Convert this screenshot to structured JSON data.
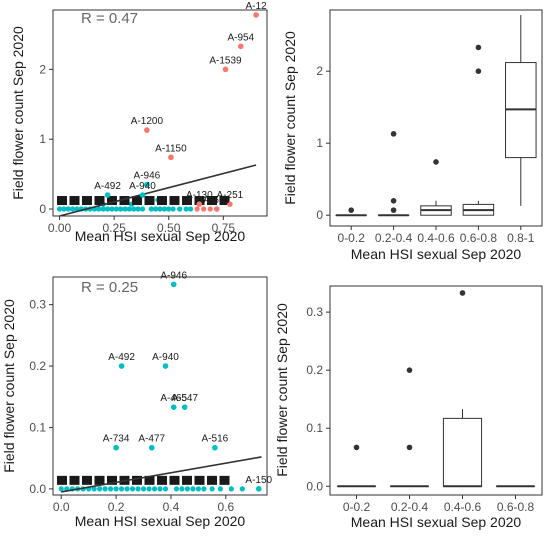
{
  "chart_data": [
    {
      "id": "p1",
      "type": "scatter",
      "xlabel": "Mean HSI sexual Sep 2020",
      "ylabel": "Field flower count Sep 2020",
      "annotation": "R = 0.47",
      "xlim": [
        -0.03,
        0.95
      ],
      "ylim": [
        -0.1,
        2.85
      ],
      "xticks": [
        "0.00",
        "0.25",
        "0.50",
        "0.75"
      ],
      "xtick_values": [
        0,
        0.25,
        0.5,
        0.75
      ],
      "yticks": [
        "0",
        "1",
        "2"
      ],
      "ytick_values": [
        0,
        1,
        2
      ],
      "colors": {
        "high": "#F8766D",
        "low": "#00BFC4"
      },
      "regression": {
        "x": [
          0.0,
          0.9
        ],
        "y": [
          -0.1,
          0.63
        ]
      },
      "labeled_points": [
        {
          "label": "A-12",
          "x": 0.9,
          "y": 2.78,
          "color": "high"
        },
        {
          "label": "A-954",
          "x": 0.83,
          "y": 2.33,
          "color": "high"
        },
        {
          "label": "A-1539",
          "x": 0.76,
          "y": 2.0,
          "color": "high"
        },
        {
          "label": "A-1200",
          "x": 0.4,
          "y": 1.13,
          "color": "high"
        },
        {
          "label": "A-1150",
          "x": 0.51,
          "y": 0.74,
          "color": "high"
        },
        {
          "label": "A-946",
          "x": 0.4,
          "y": 0.35,
          "color": "low"
        },
        {
          "label": "A-492",
          "x": 0.22,
          "y": 0.2,
          "color": "low"
        },
        {
          "label": "A-940",
          "x": 0.38,
          "y": 0.2,
          "color": "low"
        },
        {
          "label": "A-130",
          "x": 0.64,
          "y": 0.07,
          "color": "high"
        },
        {
          "label": "A-251",
          "x": 0.78,
          "y": 0.07,
          "color": "high"
        },
        {
          "label": "A-509",
          "x": 0.72,
          "y": 0.0,
          "color": "high"
        }
      ],
      "points": [
        {
          "x": 0.0,
          "y": 0
        },
        {
          "x": 0.02,
          "y": 0
        },
        {
          "x": 0.04,
          "y": 0
        },
        {
          "x": 0.06,
          "y": 0
        },
        {
          "x": 0.08,
          "y": 0
        },
        {
          "x": 0.1,
          "y": 0
        },
        {
          "x": 0.12,
          "y": 0
        },
        {
          "x": 0.14,
          "y": 0
        },
        {
          "x": 0.16,
          "y": 0
        },
        {
          "x": 0.18,
          "y": 0
        },
        {
          "x": 0.2,
          "y": 0
        },
        {
          "x": 0.22,
          "y": 0
        },
        {
          "x": 0.24,
          "y": 0
        },
        {
          "x": 0.26,
          "y": 0
        },
        {
          "x": 0.28,
          "y": 0
        },
        {
          "x": 0.3,
          "y": 0
        },
        {
          "x": 0.32,
          "y": 0
        },
        {
          "x": 0.34,
          "y": 0
        },
        {
          "x": 0.36,
          "y": 0
        },
        {
          "x": 0.38,
          "y": 0
        },
        {
          "x": 0.42,
          "y": 0
        },
        {
          "x": 0.44,
          "y": 0
        },
        {
          "x": 0.46,
          "y": 0
        },
        {
          "x": 0.48,
          "y": 0
        },
        {
          "x": 0.5,
          "y": 0
        },
        {
          "x": 0.52,
          "y": 0
        },
        {
          "x": 0.55,
          "y": 0
        },
        {
          "x": 0.58,
          "y": 0
        },
        {
          "x": 0.6,
          "y": 0
        },
        {
          "x": 0.2,
          "y": 0.07
        },
        {
          "x": 0.33,
          "y": 0.07
        },
        {
          "x": 0.45,
          "y": 0.13
        },
        {
          "x": 0.41,
          "y": 0.13
        },
        {
          "x": 0.63,
          "y": 0,
          "color": "high"
        },
        {
          "x": 0.66,
          "y": 0,
          "color": "high"
        },
        {
          "x": 0.69,
          "y": 0,
          "color": "high"
        }
      ]
    },
    {
      "id": "p2",
      "type": "box",
      "xlabel": "Mean HSI sexual Sep 2020",
      "ylabel": "Field flower count Sep 2020",
      "ylim": [
        -0.15,
        2.85
      ],
      "yticks": [
        "0",
        "1",
        "2"
      ],
      "ytick_values": [
        0,
        1,
        2
      ],
      "categories": [
        "0-0.2",
        "0.2-0.4",
        "0.4-0.6",
        "0.6-0.8",
        "0.8-1"
      ],
      "boxes": [
        {
          "q1": 0,
          "median": 0,
          "q3": 0,
          "lo": 0,
          "hi": 0,
          "outliers": [
            0.07
          ]
        },
        {
          "q1": 0,
          "median": 0,
          "q3": 0,
          "lo": 0,
          "hi": 0,
          "outliers": [
            1.13,
            0.2,
            0.07
          ]
        },
        {
          "q1": 0.0,
          "median": 0.07,
          "q3": 0.13,
          "lo": 0,
          "hi": 0.2,
          "outliers": [
            0.74
          ]
        },
        {
          "q1": 0.0,
          "median": 0.07,
          "q3": 0.15,
          "lo": 0,
          "hi": 0.2,
          "outliers": [
            2.33,
            2.0
          ]
        },
        {
          "q1": 0.8,
          "median": 1.47,
          "q3": 2.12,
          "lo": 0.13,
          "hi": 2.78,
          "outliers": []
        }
      ]
    },
    {
      "id": "p3",
      "type": "scatter",
      "xlabel": "Mean HSI sexual Sep 2020",
      "ylabel": "Field flower count Sep 2020",
      "annotation": "R = 0.25",
      "xlim": [
        -0.03,
        0.75
      ],
      "ylim": [
        -0.01,
        0.345
      ],
      "xticks": [
        "0.0",
        "0.2",
        "0.4",
        "0.6"
      ],
      "xtick_values": [
        0,
        0.2,
        0.4,
        0.6
      ],
      "yticks": [
        "0.0",
        "0.1",
        "0.2",
        "0.3"
      ],
      "ytick_values": [
        0,
        0.1,
        0.2,
        0.3
      ],
      "colors": {
        "low": "#00BFC4"
      },
      "regression": {
        "x": [
          0.0,
          0.73
        ],
        "y": [
          -0.005,
          0.052
        ]
      },
      "labeled_points": [
        {
          "label": "A-946",
          "x": 0.41,
          "y": 0.333,
          "color": "low"
        },
        {
          "label": "A-492",
          "x": 0.22,
          "y": 0.2,
          "color": "low"
        },
        {
          "label": "A-940",
          "x": 0.38,
          "y": 0.2,
          "color": "low"
        },
        {
          "label": "A-465",
          "x": 0.41,
          "y": 0.133,
          "color": "low"
        },
        {
          "label": "A-547",
          "x": 0.45,
          "y": 0.133,
          "color": "low"
        },
        {
          "label": "A-734",
          "x": 0.2,
          "y": 0.067,
          "color": "low"
        },
        {
          "label": "A-477",
          "x": 0.33,
          "y": 0.067,
          "color": "low"
        },
        {
          "label": "A-516",
          "x": 0.56,
          "y": 0.067,
          "color": "low"
        },
        {
          "label": "A-150",
          "x": 0.72,
          "y": 0.0,
          "color": "low"
        }
      ],
      "points": [
        {
          "x": 0.0,
          "y": 0
        },
        {
          "x": 0.02,
          "y": 0
        },
        {
          "x": 0.04,
          "y": 0
        },
        {
          "x": 0.06,
          "y": 0
        },
        {
          "x": 0.08,
          "y": 0
        },
        {
          "x": 0.1,
          "y": 0
        },
        {
          "x": 0.12,
          "y": 0
        },
        {
          "x": 0.14,
          "y": 0
        },
        {
          "x": 0.16,
          "y": 0
        },
        {
          "x": 0.18,
          "y": 0
        },
        {
          "x": 0.2,
          "y": 0
        },
        {
          "x": 0.22,
          "y": 0
        },
        {
          "x": 0.24,
          "y": 0
        },
        {
          "x": 0.26,
          "y": 0
        },
        {
          "x": 0.28,
          "y": 0
        },
        {
          "x": 0.3,
          "y": 0
        },
        {
          "x": 0.32,
          "y": 0
        },
        {
          "x": 0.34,
          "y": 0
        },
        {
          "x": 0.36,
          "y": 0
        },
        {
          "x": 0.38,
          "y": 0
        },
        {
          "x": 0.42,
          "y": 0
        },
        {
          "x": 0.44,
          "y": 0
        },
        {
          "x": 0.46,
          "y": 0
        },
        {
          "x": 0.48,
          "y": 0
        },
        {
          "x": 0.5,
          "y": 0
        },
        {
          "x": 0.52,
          "y": 0
        },
        {
          "x": 0.55,
          "y": 0
        },
        {
          "x": 0.58,
          "y": 0
        },
        {
          "x": 0.62,
          "y": 0
        },
        {
          "x": 0.66,
          "y": 0
        }
      ]
    },
    {
      "id": "p4",
      "type": "box",
      "xlabel": "Mean HSI sexual Sep 2020",
      "ylabel": "Field flower count Sep 2020",
      "ylim": [
        -0.015,
        0.345
      ],
      "yticks": [
        "0.0",
        "0.1",
        "0.2",
        "0.3"
      ],
      "ytick_values": [
        0,
        0.1,
        0.2,
        0.3
      ],
      "categories": [
        "0-0.2",
        "0.2-0.4",
        "0.4-0.6",
        "0.6-0.8"
      ],
      "boxes": [
        {
          "q1": 0,
          "median": 0,
          "q3": 0,
          "lo": 0,
          "hi": 0,
          "outliers": [
            0.067
          ]
        },
        {
          "q1": 0,
          "median": 0,
          "q3": 0,
          "lo": 0,
          "hi": 0,
          "outliers": [
            0.2,
            0.067
          ]
        },
        {
          "q1": 0,
          "median": 0,
          "q3": 0.117,
          "lo": 0,
          "hi": 0.133,
          "outliers": [
            0.333
          ]
        },
        {
          "q1": 0,
          "median": 0,
          "q3": 0,
          "lo": 0,
          "hi": 0,
          "outliers": []
        }
      ]
    }
  ]
}
